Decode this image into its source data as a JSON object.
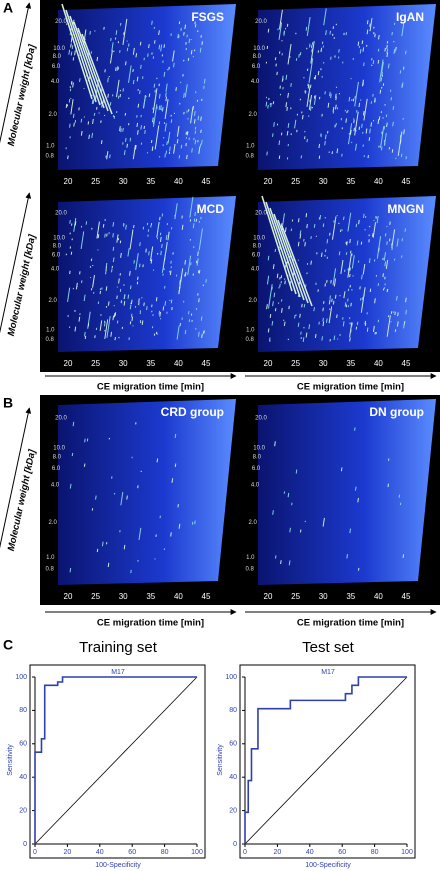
{
  "panel_a": {
    "label": "A",
    "plots": [
      {
        "title": "FSGS"
      },
      {
        "title": "IgAN"
      },
      {
        "title": "MCD"
      },
      {
        "title": "MNGN"
      }
    ]
  },
  "panel_b": {
    "label": "B",
    "plots": [
      {
        "title": "CRD group"
      },
      {
        "title": "DN group"
      }
    ]
  },
  "axes": {
    "y_label": "Molecular weight [kDa]",
    "x_label": "CE migration time [min]",
    "mw_ticks": [
      "20.0",
      "10.0",
      "8.0",
      "6.0",
      "4.0",
      "2.0",
      "1.0",
      "0.8"
    ],
    "ce_ticks": [
      20,
      25,
      30,
      35,
      40,
      45
    ]
  },
  "panel_c": {
    "label": "C"
  },
  "chart_data": [
    {
      "type": "line",
      "title": "Training set",
      "subtitle": "M17",
      "x_label": "100-Specificity",
      "y_label": "Sensitivity",
      "x": [
        0,
        0,
        4,
        4,
        6,
        6,
        14,
        14,
        17,
        17,
        100
      ],
      "values": [
        0,
        55,
        55,
        63,
        63,
        95,
        95,
        97,
        97,
        100,
        100
      ],
      "color": "#2f3fb0",
      "xlim": [
        0,
        100
      ],
      "ylim": [
        0,
        100
      ],
      "xticks": [
        0,
        20,
        40,
        60,
        80,
        100
      ],
      "yticks": [
        0,
        20,
        40,
        60,
        80,
        100
      ]
    },
    {
      "type": "line",
      "title": "Test set",
      "subtitle": "M17",
      "x_label": "100-Specificity",
      "y_label": "Sensitivity",
      "x": [
        0,
        0,
        2,
        2,
        4,
        4,
        8,
        8,
        28,
        28,
        62,
        62,
        66,
        66,
        70,
        70,
        100
      ],
      "values": [
        0,
        19,
        19,
        38,
        38,
        57,
        57,
        81,
        81,
        86,
        86,
        90,
        90,
        95,
        95,
        100,
        100
      ],
      "color": "#2f3fb0",
      "xlim": [
        0,
        100
      ],
      "ylim": [
        0,
        100
      ],
      "xticks": [
        0,
        20,
        40,
        60,
        80,
        100
      ],
      "yticks": [
        0,
        20,
        40,
        60,
        80,
        100
      ]
    }
  ]
}
